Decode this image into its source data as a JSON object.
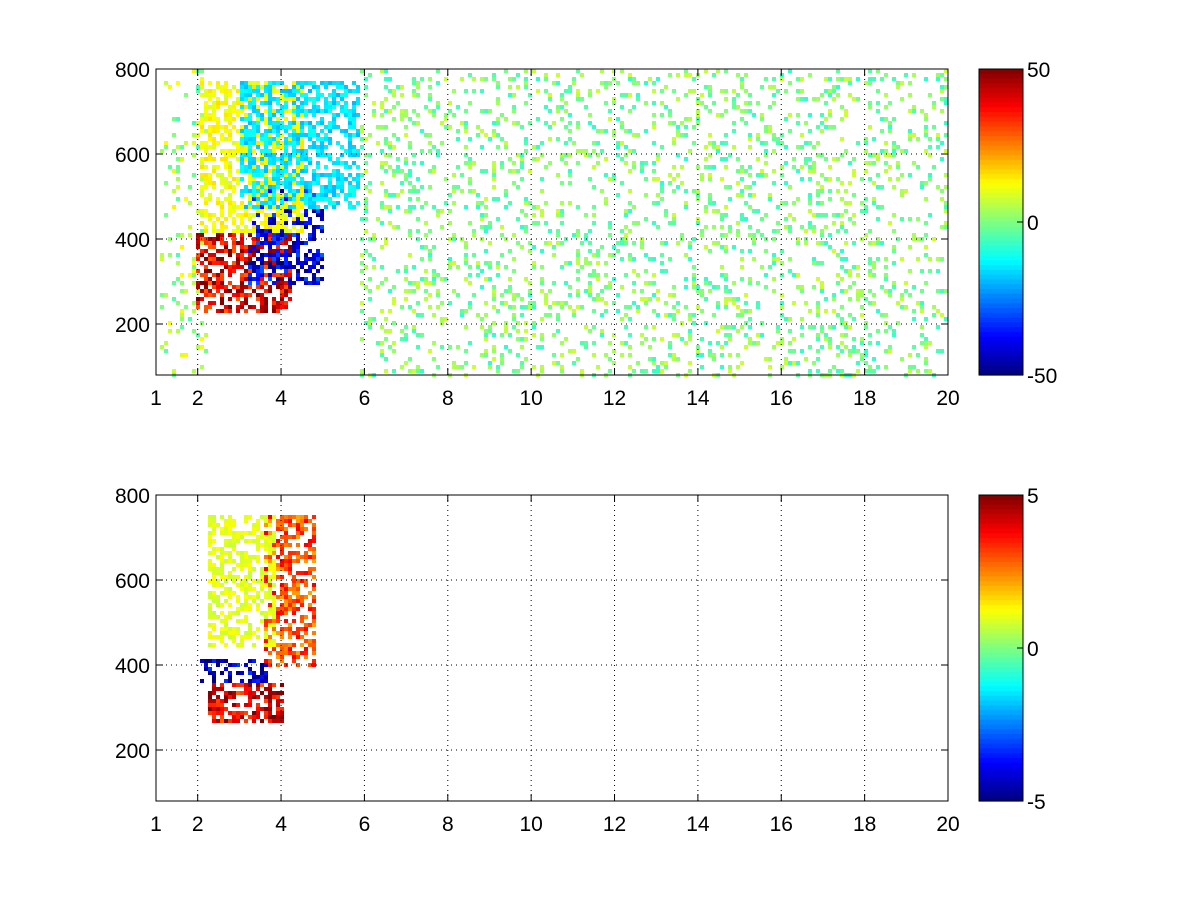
{
  "chart_data": [
    {
      "type": "heatmap",
      "title": "",
      "xlabel": "",
      "ylabel": "",
      "xlim": [
        1,
        20
      ],
      "ylim": [
        80,
        800
      ],
      "x_ticks": [
        1,
        2,
        4,
        6,
        8,
        10,
        12,
        14,
        16,
        18,
        20
      ],
      "y_ticks": [
        200,
        400,
        600,
        800
      ],
      "grid": true,
      "colormap": "jet",
      "clim": [
        -50,
        50
      ],
      "colorbar_ticks": [
        50,
        0,
        -50
      ],
      "colorbar_tick_labels": [
        "50",
        "0",
        "-50"
      ],
      "x_tick_labels": [
        "1",
        "2",
        "4",
        "6",
        "8",
        "10",
        "12",
        "14",
        "16",
        "18",
        "20"
      ],
      "y_tick_labels": [
        "200",
        "400",
        "600",
        "800"
      ],
      "features": [
        {
          "x": [
            1.9,
            4.2
          ],
          "y": [
            230,
            420
          ],
          "value": 40
        },
        {
          "x": [
            3.2,
            5.0
          ],
          "y": [
            300,
            520
          ],
          "value": -40
        },
        {
          "x": [
            2.0,
            4.5
          ],
          "y": [
            420,
            780
          ],
          "value": 12
        },
        {
          "x": [
            3.0,
            5.8
          ],
          "y": [
            480,
            780
          ],
          "value": -15
        }
      ],
      "noise_x_range": [
        5.8,
        20
      ],
      "noise_values": [
        -8,
        8
      ]
    },
    {
      "type": "heatmap",
      "title": "",
      "xlabel": "",
      "ylabel": "",
      "xlim": [
        1,
        20
      ],
      "ylim": [
        80,
        800
      ],
      "x_ticks": [
        1,
        2,
        4,
        6,
        8,
        10,
        12,
        14,
        16,
        18,
        20
      ],
      "y_ticks": [
        200,
        400,
        600,
        800
      ],
      "grid": true,
      "colormap": "jet",
      "clim": [
        -5,
        5
      ],
      "colorbar_ticks": [
        5,
        0,
        -5
      ],
      "colorbar_tick_labels": [
        "5",
        "0",
        "-5"
      ],
      "x_tick_labels": [
        "1",
        "2",
        "4",
        "6",
        "8",
        "10",
        "12",
        "14",
        "16",
        "18",
        "20"
      ],
      "y_tick_labels": [
        "200",
        "400",
        "600",
        "800"
      ],
      "features": [
        {
          "x": [
            2.0,
            3.6
          ],
          "y": [
            360,
            420
          ],
          "value": -4.5
        },
        {
          "x": [
            2.2,
            4.0
          ],
          "y": [
            270,
            360
          ],
          "value": 4
        },
        {
          "x": [
            3.5,
            4.8
          ],
          "y": [
            400,
            760
          ],
          "value": 3
        },
        {
          "x": [
            2.2,
            3.8
          ],
          "y": [
            450,
            760
          ],
          "value": 1
        }
      ],
      "noise_x_range": [
        6,
        20
      ],
      "noise_values": []
    }
  ]
}
